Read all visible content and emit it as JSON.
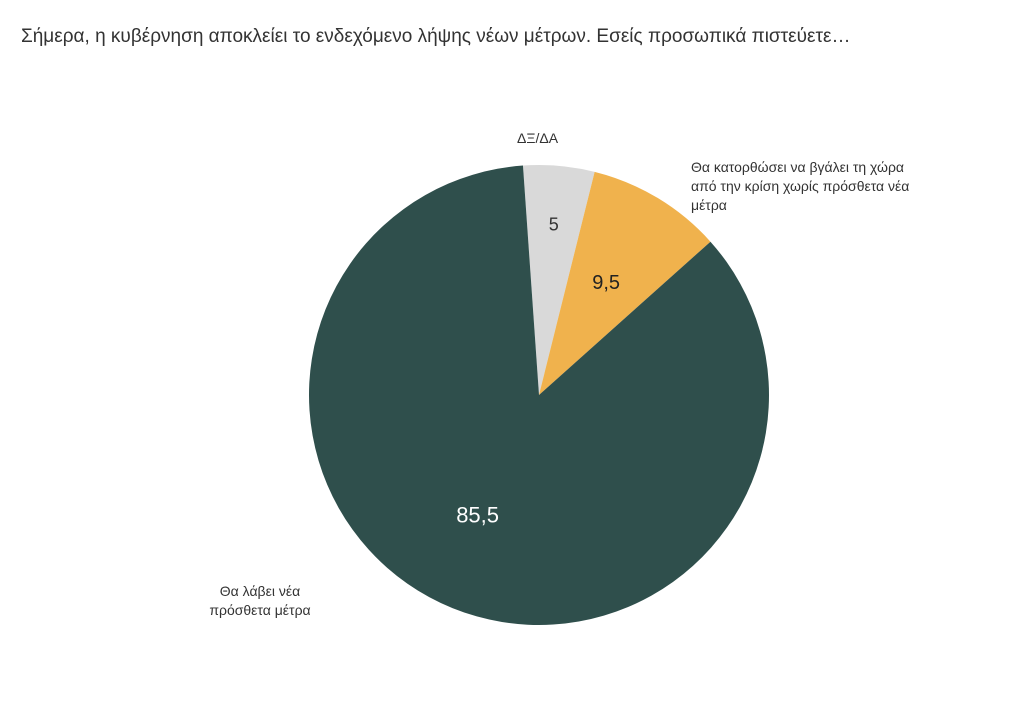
{
  "chart_data": {
    "type": "pie",
    "title": "Σήμερα, η κυβέρνηση αποκλείει το ενδεχόμενο λήψης νέων μέτρων. Εσείς προσωπικά πιστεύετε…",
    "slices": [
      {
        "label": "ΔΞ/ΔΑ",
        "value": 5,
        "value_label": "5",
        "color": "#d9d9d9"
      },
      {
        "label": "Θα κατορθώσει να βγάλει τη χώρα από την κρίση χωρίς πρόσθετα νέα μέτρα",
        "value": 9.5,
        "value_label": "9,5",
        "color": "#f0b24d"
      },
      {
        "label": "Θα λάβει νέα πρόσθετα μέτρα",
        "value": 85.5,
        "value_label": "85,5",
        "color": "#2f4f4c"
      }
    ]
  }
}
